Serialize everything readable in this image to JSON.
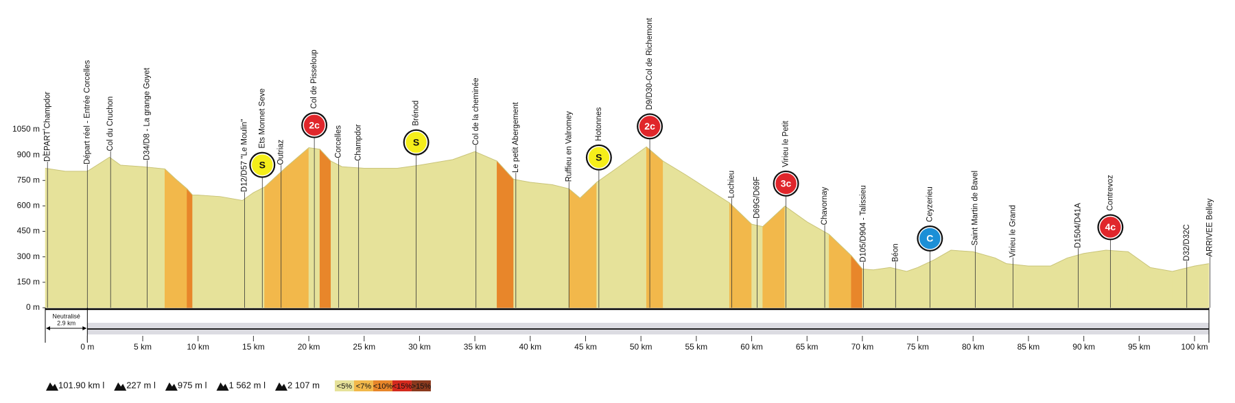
{
  "chart_data": {
    "type": "area",
    "x": [
      -3.8,
      -2,
      0,
      2,
      3,
      5,
      7,
      8,
      9,
      9.5,
      10,
      12,
      14,
      15,
      16,
      18,
      20,
      21,
      22,
      23,
      25,
      28,
      30,
      33,
      35,
      37,
      38.5,
      40,
      42,
      43.5,
      44.5,
      46,
      48,
      50.5,
      52,
      54,
      56,
      58,
      60,
      61,
      63,
      65,
      67,
      69,
      70,
      71,
      72.5,
      74,
      75,
      76.5,
      78,
      80,
      82,
      83,
      85,
      87,
      88.5,
      90,
      92,
      94,
      96,
      98,
      100,
      101.3
    ],
    "values": [
      822,
      804,
      804,
      887,
      840,
      831,
      818,
      757,
      701,
      664,
      664,
      655,
      632,
      678,
      711,
      831,
      943,
      934,
      864,
      831,
      822,
      822,
      840,
      873,
      920,
      864,
      757,
      739,
      725,
      701,
      646,
      739,
      831,
      948,
      864,
      785,
      701,
      618,
      492,
      478,
      599,
      506,
      432,
      307,
      228,
      223,
      237,
      214,
      237,
      283,
      339,
      330,
      293,
      260,
      246,
      246,
      293,
      320,
      339,
      330,
      237,
      214,
      246,
      260
    ],
    "color": "#e6e29a",
    "xlim": [
      -3.8,
      101.3
    ],
    "ylim": [
      0,
      1050
    ],
    "yticks": [
      {
        "value": 0,
        "label": "0 m"
      },
      {
        "value": 150,
        "label": "150 m"
      },
      {
        "value": 300,
        "label": "300 m"
      },
      {
        "value": 450,
        "label": "450 m"
      },
      {
        "value": 600,
        "label": "600 m"
      },
      {
        "value": 750,
        "label": "750 m"
      },
      {
        "value": 900,
        "label": "900 m"
      },
      {
        "value": 1050,
        "label": "1050 m"
      }
    ],
    "xticks": [
      {
        "value": 0,
        "label": "0 m"
      },
      {
        "value": 5,
        "label": "5 km"
      },
      {
        "value": 10,
        "label": "10 km"
      },
      {
        "value": 15,
        "label": "15 km"
      },
      {
        "value": 20,
        "label": "20 km"
      },
      {
        "value": 25,
        "label": "25 km"
      },
      {
        "value": 30,
        "label": "30 km"
      },
      {
        "value": 35,
        "label": "35 km"
      },
      {
        "value": 40,
        "label": "40 km"
      },
      {
        "value": 45,
        "label": "45 km"
      },
      {
        "value": 50,
        "label": "50 km"
      },
      {
        "value": 55,
        "label": "55 km"
      },
      {
        "value": 60,
        "label": "60 km"
      },
      {
        "value": 65,
        "label": "65 km"
      },
      {
        "value": 70,
        "label": "70 km"
      },
      {
        "value": 75,
        "label": "75 km"
      },
      {
        "value": 80,
        "label": "80 km"
      },
      {
        "value": 85,
        "label": "85 km"
      },
      {
        "value": 90,
        "label": "90 km"
      },
      {
        "value": 95,
        "label": "95 km"
      },
      {
        "value": 100,
        "label": "100 km"
      }
    ],
    "waypoints": [
      {
        "name": "DEPART  Champdor",
        "km": -3.6
      },
      {
        "name": "Départ réel - Entrée Corcelles",
        "km": 0
      },
      {
        "name": "Col du Cruchon",
        "km": 2.1
      },
      {
        "name": "D34/D8 - La grange Goyet",
        "km": 5.4
      },
      {
        "name": "D12/D57  \"Le Moulin\"",
        "km": 14.2
      },
      {
        "name": "Ets Monnet Seve",
        "km": 15.8,
        "badge": "S",
        "badge_color": "#f5ee1a"
      },
      {
        "name": "Outriaz",
        "km": 17.5
      },
      {
        "name": "Col de Pisseloup",
        "km": 20.5,
        "badge": "2c",
        "badge_color": "#e0262b"
      },
      {
        "name": "Corcelles",
        "km": 22.7
      },
      {
        "name": "Champdor",
        "km": 24.5
      },
      {
        "name": "Brénod",
        "km": 29.7,
        "badge": "S",
        "badge_color": "#f5ee1a"
      },
      {
        "name": "Col de la cheminée",
        "km": 35.1
      },
      {
        "name": "Le petit Abergement",
        "km": 38.7
      },
      {
        "name": "Ruffieu en Valromey",
        "km": 43.5
      },
      {
        "name": "Hotonnes",
        "km": 46.2,
        "badge": "S",
        "badge_color": "#f5ee1a"
      },
      {
        "name": "D9/D30-Col de Richemont",
        "km": 50.8,
        "badge": "2c",
        "badge_color": "#e0262b"
      },
      {
        "name": "Lochieu",
        "km": 58.2
      },
      {
        "name": "D69G/D69F",
        "km": 60.5
      },
      {
        "name": "Virieu le Petit",
        "km": 63.1,
        "badge": "3c",
        "badge_color": "#e0262b"
      },
      {
        "name": "Chavornay",
        "km": 66.6
      },
      {
        "name": "D105/D904 - Talissieu",
        "km": 70.1
      },
      {
        "name": "Béon",
        "km": 73.0
      },
      {
        "name": "Ceyzerieu",
        "km": 76.1,
        "badge": "C",
        "badge_color": "#1c8fd6"
      },
      {
        "name": "Saint Martin de Bavel",
        "km": 80.2
      },
      {
        "name": "Virieu le Grand",
        "km": 83.6
      },
      {
        "name": "D1504/D41A",
        "km": 89.5
      },
      {
        "name": "Contrevoz",
        "km": 92.4,
        "badge": "4c",
        "badge_color": "#e0262b"
      },
      {
        "name": "D32/D32C",
        "km": 99.3
      },
      {
        "name": "ARRIVEE  Belley",
        "km": 101.4
      }
    ],
    "neutral": {
      "title": "Neutralisé",
      "length": "2.9 km"
    },
    "stats": [
      "101.90 km l",
      "227 m l",
      "975 m l",
      "1 562 m l",
      "2 107 m"
    ],
    "gradient_legend": [
      {
        "label": "<5%",
        "color": "#e6e29a"
      },
      {
        "label": "<7%",
        "color": "#f2b84b"
      },
      {
        "label": "<10%",
        "color": "#e8862a"
      },
      {
        "label": "<15%",
        "color": "#d42a1e"
      },
      {
        "label": ">15%",
        "color": "#8b3a1e"
      }
    ]
  }
}
